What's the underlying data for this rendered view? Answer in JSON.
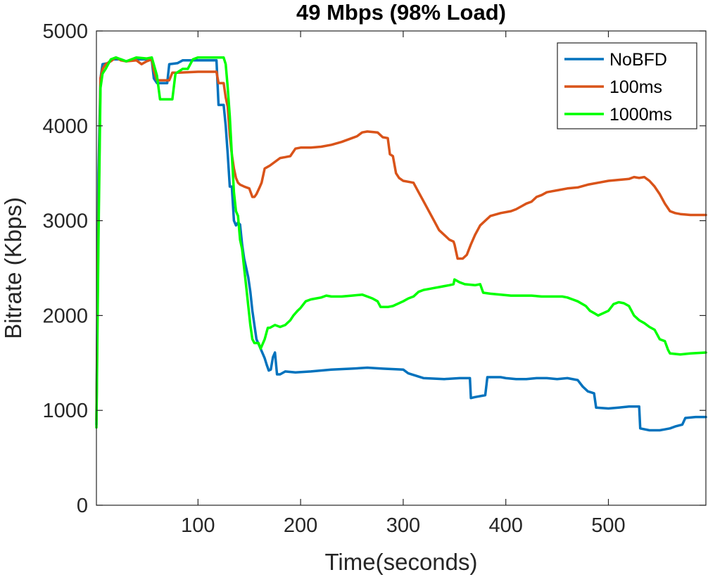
{
  "chart_data": {
    "type": "line",
    "title": "49 Mbps (98% Load)",
    "xlabel": "Time(seconds)",
    "ylabel": "Bitrate (Kbps)",
    "xlim": [
      1,
      595
    ],
    "ylim": [
      0,
      5000
    ],
    "xticks": [
      100,
      200,
      300,
      400,
      500
    ],
    "yticks": [
      0,
      1000,
      2000,
      3000,
      4000,
      5000
    ],
    "grid": false,
    "legend_position": "top-right",
    "series": [
      {
        "name": "NoBFD",
        "color": "#0072BD",
        "points": [
          [
            1,
            850
          ],
          [
            3,
            3500
          ],
          [
            5,
            4500
          ],
          [
            7,
            4650
          ],
          [
            12,
            4660
          ],
          [
            16,
            4700
          ],
          [
            20,
            4700
          ],
          [
            25,
            4700
          ],
          [
            30,
            4680
          ],
          [
            40,
            4700
          ],
          [
            50,
            4700
          ],
          [
            55,
            4690
          ],
          [
            57,
            4500
          ],
          [
            60,
            4450
          ],
          [
            65,
            4450
          ],
          [
            70,
            4450
          ],
          [
            72,
            4650
          ],
          [
            80,
            4660
          ],
          [
            85,
            4690
          ],
          [
            100,
            4690
          ],
          [
            118,
            4690
          ],
          [
            120,
            4220
          ],
          [
            125,
            4220
          ],
          [
            127,
            4000
          ],
          [
            129,
            3700
          ],
          [
            131,
            3360
          ],
          [
            133,
            3360
          ],
          [
            135,
            3000
          ],
          [
            137,
            2950
          ],
          [
            139,
            2980
          ],
          [
            141,
            2960
          ],
          [
            143,
            2750
          ],
          [
            145,
            2600
          ],
          [
            147,
            2500
          ],
          [
            149,
            2400
          ],
          [
            151,
            2250
          ],
          [
            153,
            2050
          ],
          [
            155,
            1900
          ],
          [
            157,
            1750
          ],
          [
            159,
            1700
          ],
          [
            161,
            1650
          ],
          [
            163,
            1600
          ],
          [
            165,
            1550
          ],
          [
            167,
            1480
          ],
          [
            169,
            1420
          ],
          [
            171,
            1430
          ],
          [
            173,
            1560
          ],
          [
            175,
            1610
          ],
          [
            177,
            1380
          ],
          [
            180,
            1380
          ],
          [
            185,
            1410
          ],
          [
            195,
            1400
          ],
          [
            210,
            1410
          ],
          [
            230,
            1430
          ],
          [
            250,
            1440
          ],
          [
            265,
            1450
          ],
          [
            280,
            1440
          ],
          [
            300,
            1430
          ],
          [
            305,
            1390
          ],
          [
            320,
            1340
          ],
          [
            340,
            1330
          ],
          [
            355,
            1340
          ],
          [
            365,
            1340
          ],
          [
            366,
            1130
          ],
          [
            370,
            1140
          ],
          [
            380,
            1160
          ],
          [
            382,
            1350
          ],
          [
            395,
            1350
          ],
          [
            400,
            1340
          ],
          [
            410,
            1330
          ],
          [
            420,
            1330
          ],
          [
            430,
            1340
          ],
          [
            440,
            1340
          ],
          [
            450,
            1330
          ],
          [
            460,
            1340
          ],
          [
            470,
            1320
          ],
          [
            475,
            1250
          ],
          [
            480,
            1200
          ],
          [
            486,
            1180
          ],
          [
            488,
            1030
          ],
          [
            500,
            1020
          ],
          [
            510,
            1030
          ],
          [
            520,
            1040
          ],
          [
            530,
            1040
          ],
          [
            531,
            810
          ],
          [
            540,
            790
          ],
          [
            550,
            790
          ],
          [
            555,
            800
          ],
          [
            560,
            810
          ],
          [
            565,
            830
          ],
          [
            572,
            850
          ],
          [
            575,
            920
          ],
          [
            585,
            930
          ],
          [
            595,
            930
          ]
        ]
      },
      {
        "name": "100ms",
        "color": "#D95319",
        "points": [
          [
            1,
            900
          ],
          [
            3,
            3000
          ],
          [
            5,
            4500
          ],
          [
            7,
            4600
          ],
          [
            10,
            4650
          ],
          [
            15,
            4680
          ],
          [
            20,
            4720
          ],
          [
            25,
            4690
          ],
          [
            30,
            4680
          ],
          [
            40,
            4690
          ],
          [
            45,
            4650
          ],
          [
            50,
            4680
          ],
          [
            55,
            4700
          ],
          [
            57,
            4580
          ],
          [
            60,
            4480
          ],
          [
            68,
            4480
          ],
          [
            72,
            4480
          ],
          [
            75,
            4560
          ],
          [
            80,
            4560
          ],
          [
            100,
            4570
          ],
          [
            118,
            4570
          ],
          [
            120,
            4450
          ],
          [
            125,
            4450
          ],
          [
            127,
            4300
          ],
          [
            129,
            4200
          ],
          [
            131,
            3900
          ],
          [
            133,
            3700
          ],
          [
            135,
            3550
          ],
          [
            137,
            3450
          ],
          [
            139,
            3400
          ],
          [
            141,
            3380
          ],
          [
            145,
            3360
          ],
          [
            150,
            3340
          ],
          [
            153,
            3250
          ],
          [
            155,
            3250
          ],
          [
            157,
            3280
          ],
          [
            160,
            3350
          ],
          [
            162,
            3400
          ],
          [
            165,
            3550
          ],
          [
            170,
            3580
          ],
          [
            175,
            3620
          ],
          [
            180,
            3660
          ],
          [
            185,
            3670
          ],
          [
            190,
            3680
          ],
          [
            195,
            3760
          ],
          [
            200,
            3770
          ],
          [
            210,
            3770
          ],
          [
            220,
            3780
          ],
          [
            230,
            3800
          ],
          [
            240,
            3830
          ],
          [
            250,
            3870
          ],
          [
            255,
            3890
          ],
          [
            260,
            3930
          ],
          [
            265,
            3940
          ],
          [
            275,
            3930
          ],
          [
            280,
            3880
          ],
          [
            285,
            3870
          ],
          [
            287,
            3700
          ],
          [
            290,
            3680
          ],
          [
            293,
            3500
          ],
          [
            296,
            3450
          ],
          [
            300,
            3420
          ],
          [
            305,
            3410
          ],
          [
            310,
            3400
          ],
          [
            315,
            3300
          ],
          [
            320,
            3200
          ],
          [
            325,
            3100
          ],
          [
            330,
            3000
          ],
          [
            335,
            2900
          ],
          [
            340,
            2850
          ],
          [
            345,
            2800
          ],
          [
            349,
            2780
          ],
          [
            350,
            2750
          ],
          [
            353,
            2600
          ],
          [
            358,
            2600
          ],
          [
            362,
            2640
          ],
          [
            366,
            2750
          ],
          [
            370,
            2850
          ],
          [
            375,
            2950
          ],
          [
            380,
            3000
          ],
          [
            385,
            3050
          ],
          [
            395,
            3080
          ],
          [
            405,
            3100
          ],
          [
            410,
            3120
          ],
          [
            415,
            3150
          ],
          [
            420,
            3180
          ],
          [
            425,
            3200
          ],
          [
            430,
            3250
          ],
          [
            435,
            3270
          ],
          [
            440,
            3300
          ],
          [
            445,
            3310
          ],
          [
            450,
            3320
          ],
          [
            460,
            3340
          ],
          [
            470,
            3350
          ],
          [
            480,
            3380
          ],
          [
            490,
            3400
          ],
          [
            500,
            3420
          ],
          [
            510,
            3430
          ],
          [
            520,
            3440
          ],
          [
            525,
            3460
          ],
          [
            530,
            3450
          ],
          [
            535,
            3460
          ],
          [
            540,
            3420
          ],
          [
            545,
            3360
          ],
          [
            550,
            3280
          ],
          [
            555,
            3180
          ],
          [
            560,
            3100
          ],
          [
            565,
            3080
          ],
          [
            570,
            3070
          ],
          [
            580,
            3060
          ],
          [
            595,
            3060
          ]
        ]
      },
      {
        "name": "1000ms",
        "color": "#00FF00",
        "points": [
          [
            1,
            820
          ],
          [
            3,
            2800
          ],
          [
            5,
            4400
          ],
          [
            7,
            4550
          ],
          [
            10,
            4600
          ],
          [
            15,
            4700
          ],
          [
            20,
            4720
          ],
          [
            25,
            4700
          ],
          [
            30,
            4680
          ],
          [
            35,
            4700
          ],
          [
            40,
            4720
          ],
          [
            50,
            4710
          ],
          [
            55,
            4720
          ],
          [
            60,
            4530
          ],
          [
            63,
            4280
          ],
          [
            67,
            4280
          ],
          [
            75,
            4280
          ],
          [
            78,
            4550
          ],
          [
            85,
            4600
          ],
          [
            90,
            4600
          ],
          [
            95,
            4700
          ],
          [
            100,
            4720
          ],
          [
            110,
            4720
          ],
          [
            125,
            4720
          ],
          [
            127,
            4650
          ],
          [
            129,
            4400
          ],
          [
            131,
            4100
          ],
          [
            133,
            3700
          ],
          [
            135,
            3300
          ],
          [
            137,
            3100
          ],
          [
            139,
            3050
          ],
          [
            141,
            2800
          ],
          [
            143,
            2700
          ],
          [
            145,
            2500
          ],
          [
            147,
            2300
          ],
          [
            149,
            2100
          ],
          [
            151,
            1900
          ],
          [
            153,
            1750
          ],
          [
            155,
            1710
          ],
          [
            159,
            1710
          ],
          [
            161,
            1650
          ],
          [
            163,
            1700
          ],
          [
            165,
            1750
          ],
          [
            168,
            1870
          ],
          [
            170,
            1870
          ],
          [
            175,
            1900
          ],
          [
            180,
            1880
          ],
          [
            185,
            1900
          ],
          [
            190,
            1950
          ],
          [
            193,
            2000
          ],
          [
            197,
            2050
          ],
          [
            200,
            2080
          ],
          [
            205,
            2150
          ],
          [
            210,
            2170
          ],
          [
            215,
            2180
          ],
          [
            220,
            2190
          ],
          [
            225,
            2210
          ],
          [
            230,
            2200
          ],
          [
            240,
            2200
          ],
          [
            250,
            2210
          ],
          [
            260,
            2220
          ],
          [
            265,
            2200
          ],
          [
            270,
            2180
          ],
          [
            275,
            2150
          ],
          [
            278,
            2090
          ],
          [
            285,
            2090
          ],
          [
            290,
            2100
          ],
          [
            300,
            2150
          ],
          [
            305,
            2180
          ],
          [
            310,
            2200
          ],
          [
            315,
            2250
          ],
          [
            320,
            2270
          ],
          [
            325,
            2280
          ],
          [
            330,
            2290
          ],
          [
            335,
            2300
          ],
          [
            340,
            2310
          ],
          [
            345,
            2320
          ],
          [
            349,
            2330
          ],
          [
            350,
            2380
          ],
          [
            355,
            2350
          ],
          [
            360,
            2330
          ],
          [
            370,
            2320
          ],
          [
            375,
            2330
          ],
          [
            378,
            2240
          ],
          [
            385,
            2230
          ],
          [
            395,
            2220
          ],
          [
            405,
            2210
          ],
          [
            415,
            2210
          ],
          [
            425,
            2210
          ],
          [
            435,
            2200
          ],
          [
            445,
            2200
          ],
          [
            455,
            2200
          ],
          [
            460,
            2190
          ],
          [
            465,
            2170
          ],
          [
            470,
            2150
          ],
          [
            478,
            2100
          ],
          [
            482,
            2050
          ],
          [
            487,
            2020
          ],
          [
            490,
            2000
          ],
          [
            500,
            2050
          ],
          [
            505,
            2120
          ],
          [
            510,
            2140
          ],
          [
            515,
            2130
          ],
          [
            520,
            2100
          ],
          [
            525,
            2000
          ],
          [
            530,
            1950
          ],
          [
            535,
            1920
          ],
          [
            540,
            1880
          ],
          [
            545,
            1850
          ],
          [
            550,
            1750
          ],
          [
            555,
            1730
          ],
          [
            558,
            1640
          ],
          [
            560,
            1600
          ],
          [
            570,
            1590
          ],
          [
            580,
            1600
          ],
          [
            595,
            1610
          ]
        ]
      }
    ]
  }
}
